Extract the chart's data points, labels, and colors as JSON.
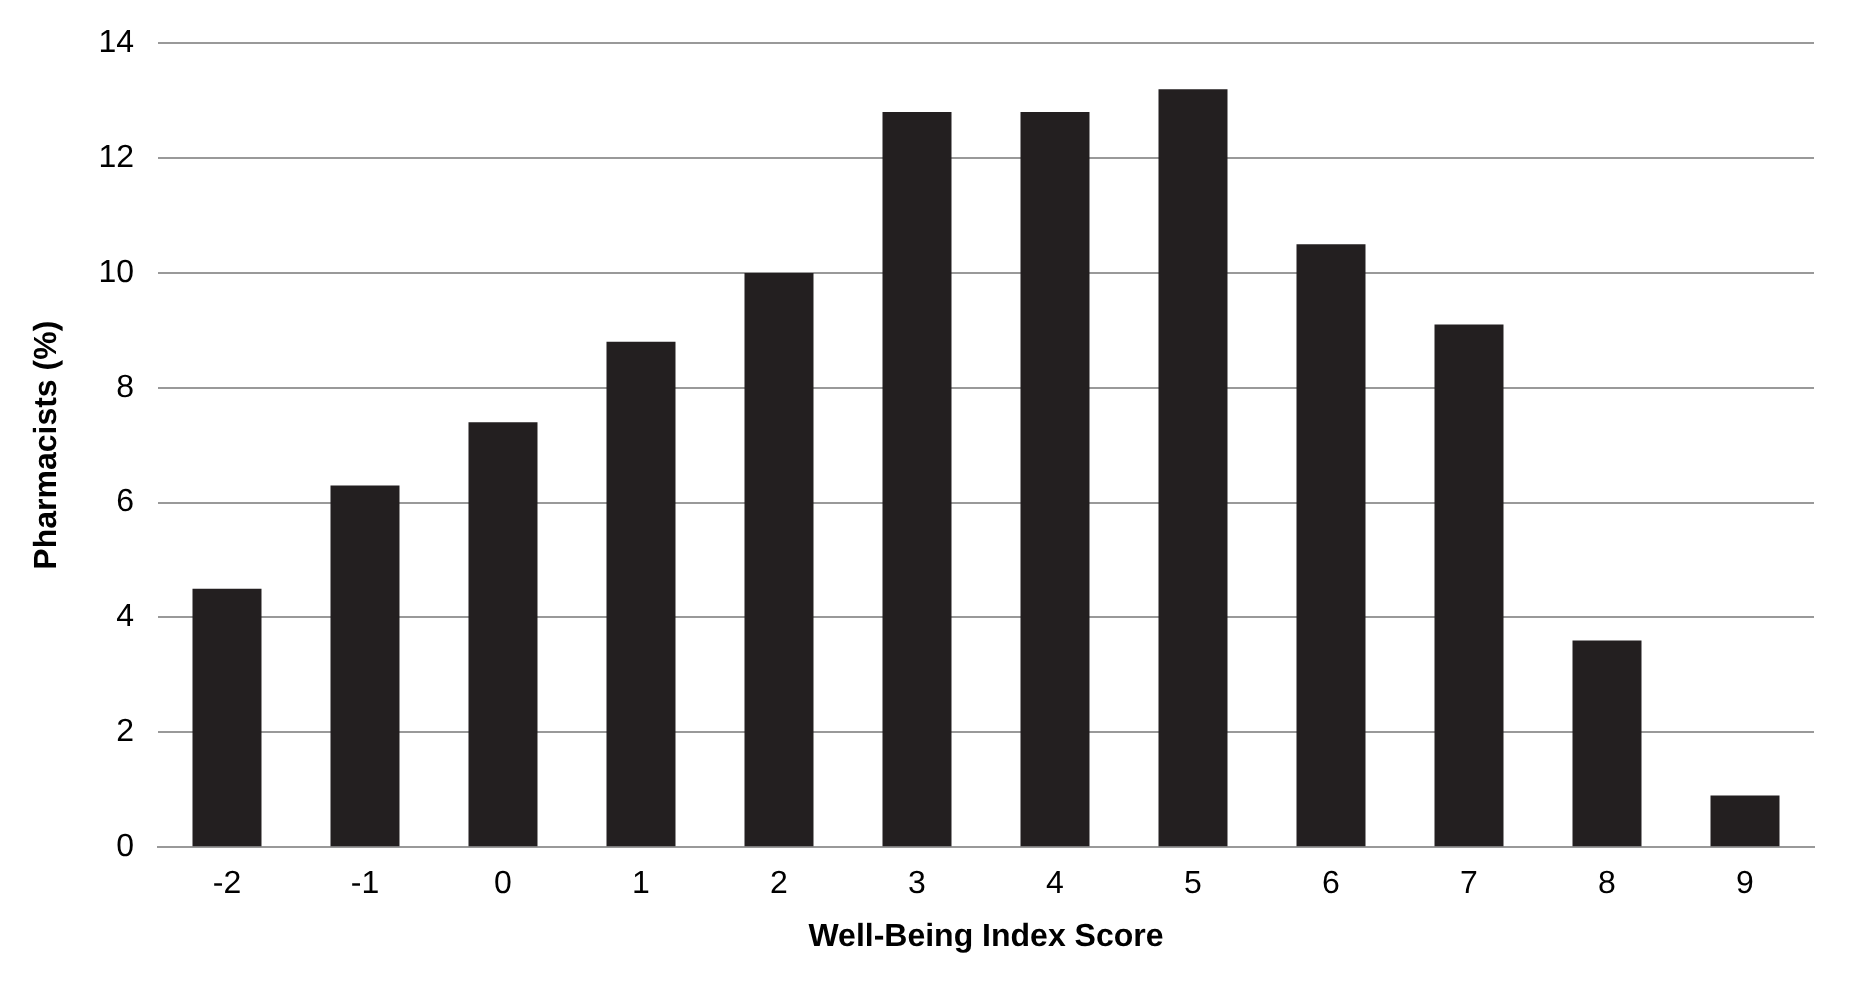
{
  "chart_data": {
    "type": "bar",
    "xlabel": "Well-Being Index Score",
    "ylabel": "Pharmacists (%)",
    "categories": [
      "-2",
      "-1",
      "0",
      "1",
      "2",
      "3",
      "4",
      "5",
      "6",
      "7",
      "8",
      "9"
    ],
    "values": [
      4.5,
      6.3,
      7.4,
      8.8,
      10.0,
      12.8,
      12.8,
      13.2,
      10.5,
      9.1,
      3.6,
      0.9
    ],
    "color": "#231f20",
    "ylim": [
      0,
      14
    ],
    "yticks": [
      0,
      2,
      4,
      6,
      8,
      10,
      12,
      14
    ],
    "grid": "y",
    "legend": false
  }
}
